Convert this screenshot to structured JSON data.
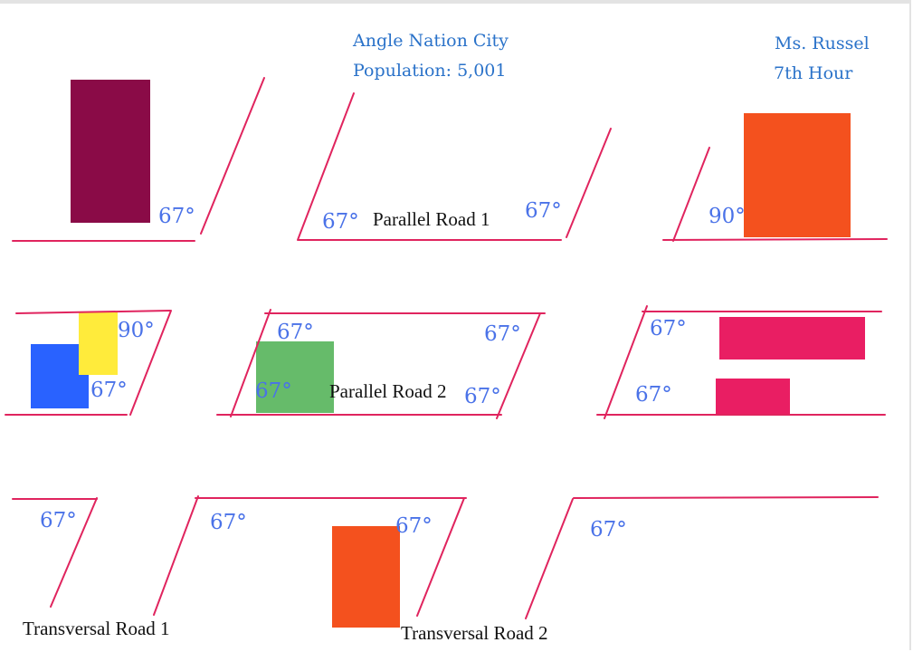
{
  "header": {
    "city_name": "Angle Nation City",
    "population": "Population: 5,001",
    "teacher": "Ms. Russel",
    "period": "7th Hour"
  },
  "roads": {
    "parallel_1": "Parallel Road 1",
    "parallel_2": "Parallel Road 2",
    "transversal_1": "Transversal Road 1",
    "transversal_2": "Transversal Road 2"
  },
  "angles": {
    "a67": "67°",
    "a90": "90°"
  },
  "colors": {
    "road_line": "#e0245e",
    "angle_text": "#4a72e8",
    "header_text": "#2a72c9",
    "maroon": "#8a0b47",
    "orange": "#f4511e",
    "blue": "#2962ff",
    "yellow": "#ffeb3b",
    "green": "#66bb6a",
    "pink": "#e91e63"
  }
}
